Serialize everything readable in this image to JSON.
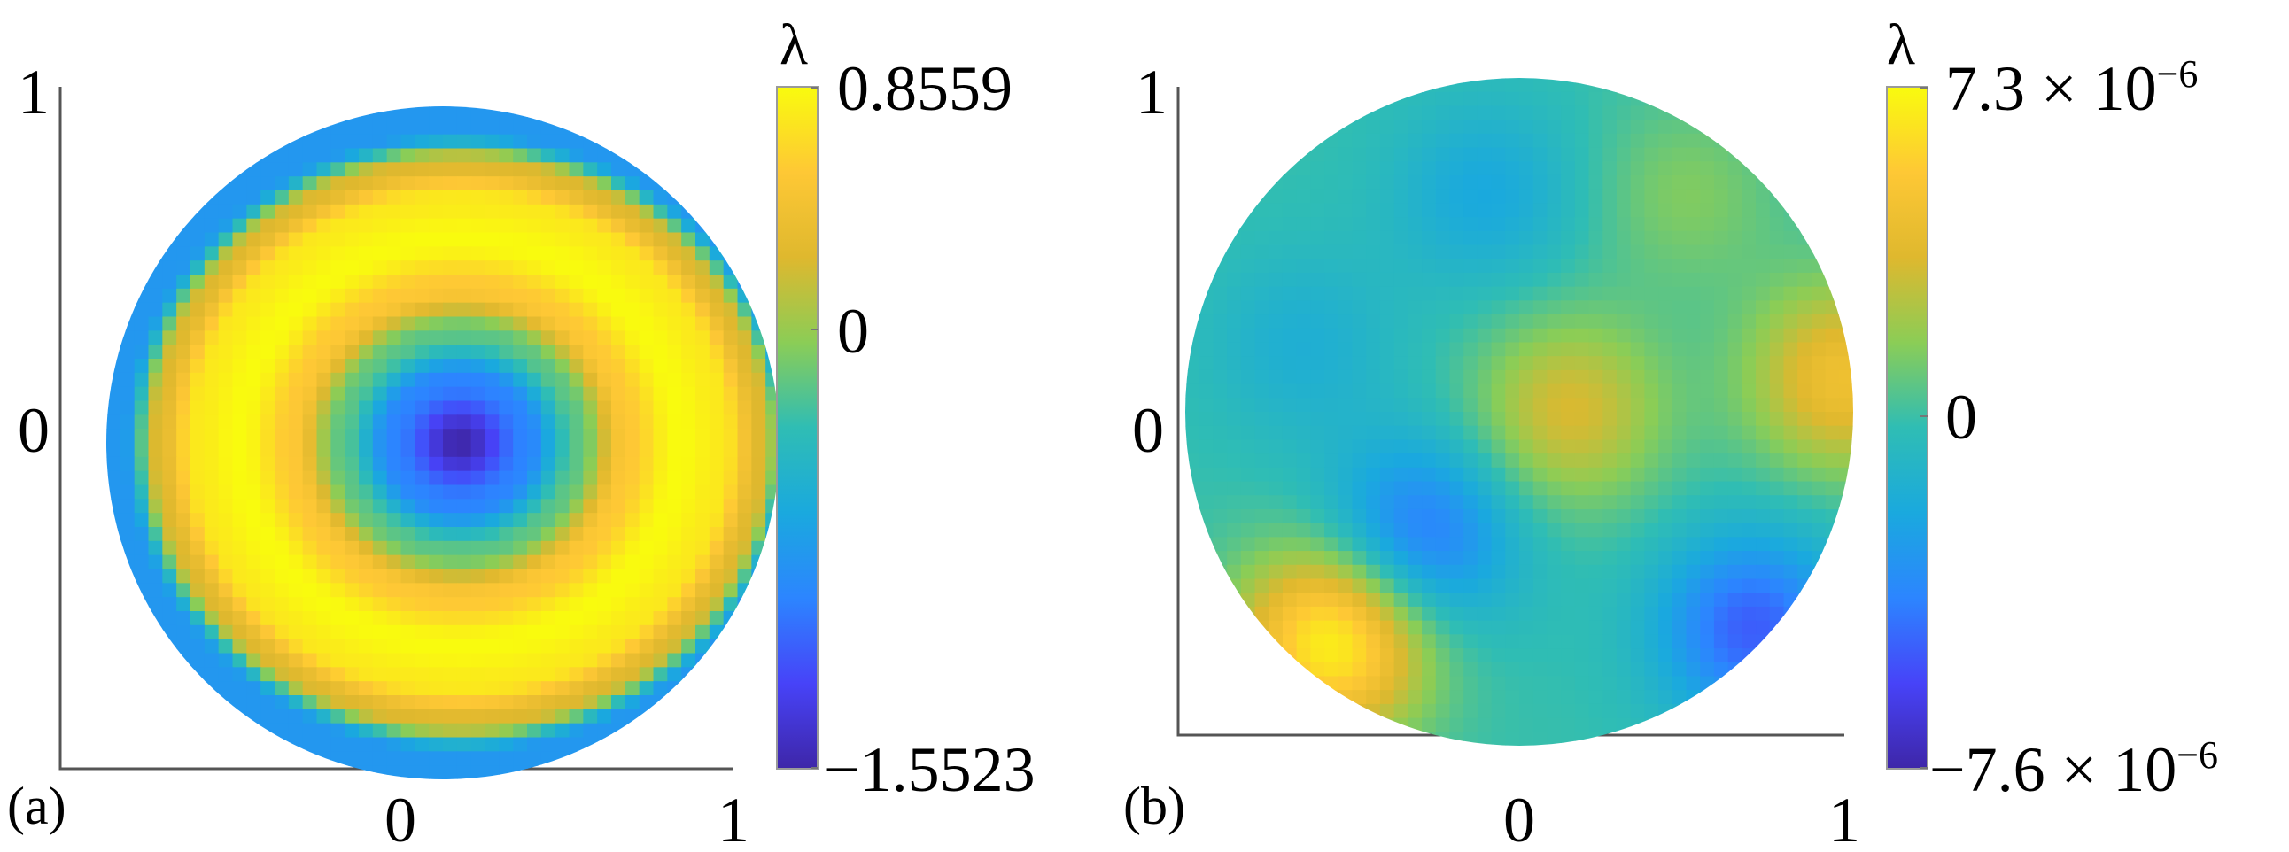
{
  "colormap": [
    "#3e26a8",
    "#4743f8",
    "#2c85ff",
    "#1aa9de",
    "#2fbdb4",
    "#8bcd56",
    "#dfb82e",
    "#fec835",
    "#f9fb0e"
  ],
  "chart_data": [
    {
      "type": "heatmap",
      "panel_label": "(a)",
      "domain": "unit disk",
      "xticks": [
        "0",
        "1"
      ],
      "yticks": [
        "0",
        "1"
      ],
      "colorbar": {
        "label": "λ",
        "max": 0.8559,
        "max_label": "0.8559",
        "mid_label": "0",
        "min": -1.5523,
        "min_label": "−1.5523"
      },
      "field": {
        "description": "radially symmetric-like field: minimum near center (about x=0.05, y=0), ring of high values near radius 0.6, decreasing again toward the rim",
        "center": [
          0.05,
          0.0
        ],
        "radial_profile": [
          [
            0.0,
            -1.5523
          ],
          [
            0.2,
            -0.95
          ],
          [
            0.35,
            -0.2
          ],
          [
            0.5,
            0.55
          ],
          [
            0.65,
            0.8559
          ],
          [
            0.78,
            0.75
          ],
          [
            0.9,
            0.25
          ],
          [
            1.0,
            -0.8
          ]
        ]
      }
    },
    {
      "type": "heatmap",
      "panel_label": "(b)",
      "domain": "unit disk",
      "xticks": [
        "0",
        "1"
      ],
      "yticks": [
        "0",
        "1"
      ],
      "colorbar": {
        "label": "λ",
        "max": 7.3e-06,
        "max_label": "7.3 × 10",
        "max_exp": "−6",
        "mid_label": "0",
        "min": -7.6e-06,
        "min_label": "−7.6 × 10",
        "min_exp": "−6"
      },
      "field": {
        "description": "irregular small-amplitude field; strongest positive lobe lower-left, positive patches at center and right rim, negative lobes left-of-center and lower-right",
        "features": [
          {
            "x": -0.55,
            "y": -0.68,
            "value": 7.3e-06
          },
          {
            "x": 0.15,
            "y": 0.0,
            "value": 3.5e-06
          },
          {
            "x": 0.97,
            "y": 0.1,
            "value": 4.5e-06
          },
          {
            "x": -0.3,
            "y": -0.38,
            "value": -4.5e-06
          },
          {
            "x": 0.7,
            "y": -0.65,
            "value": -5e-06
          },
          {
            "x": -0.1,
            "y": 0.65,
            "value": -2e-06
          },
          {
            "x": 0.5,
            "y": 0.65,
            "value": 1.5e-06
          },
          {
            "x": -0.65,
            "y": 0.2,
            "value": -1.5e-06
          }
        ]
      }
    }
  ]
}
